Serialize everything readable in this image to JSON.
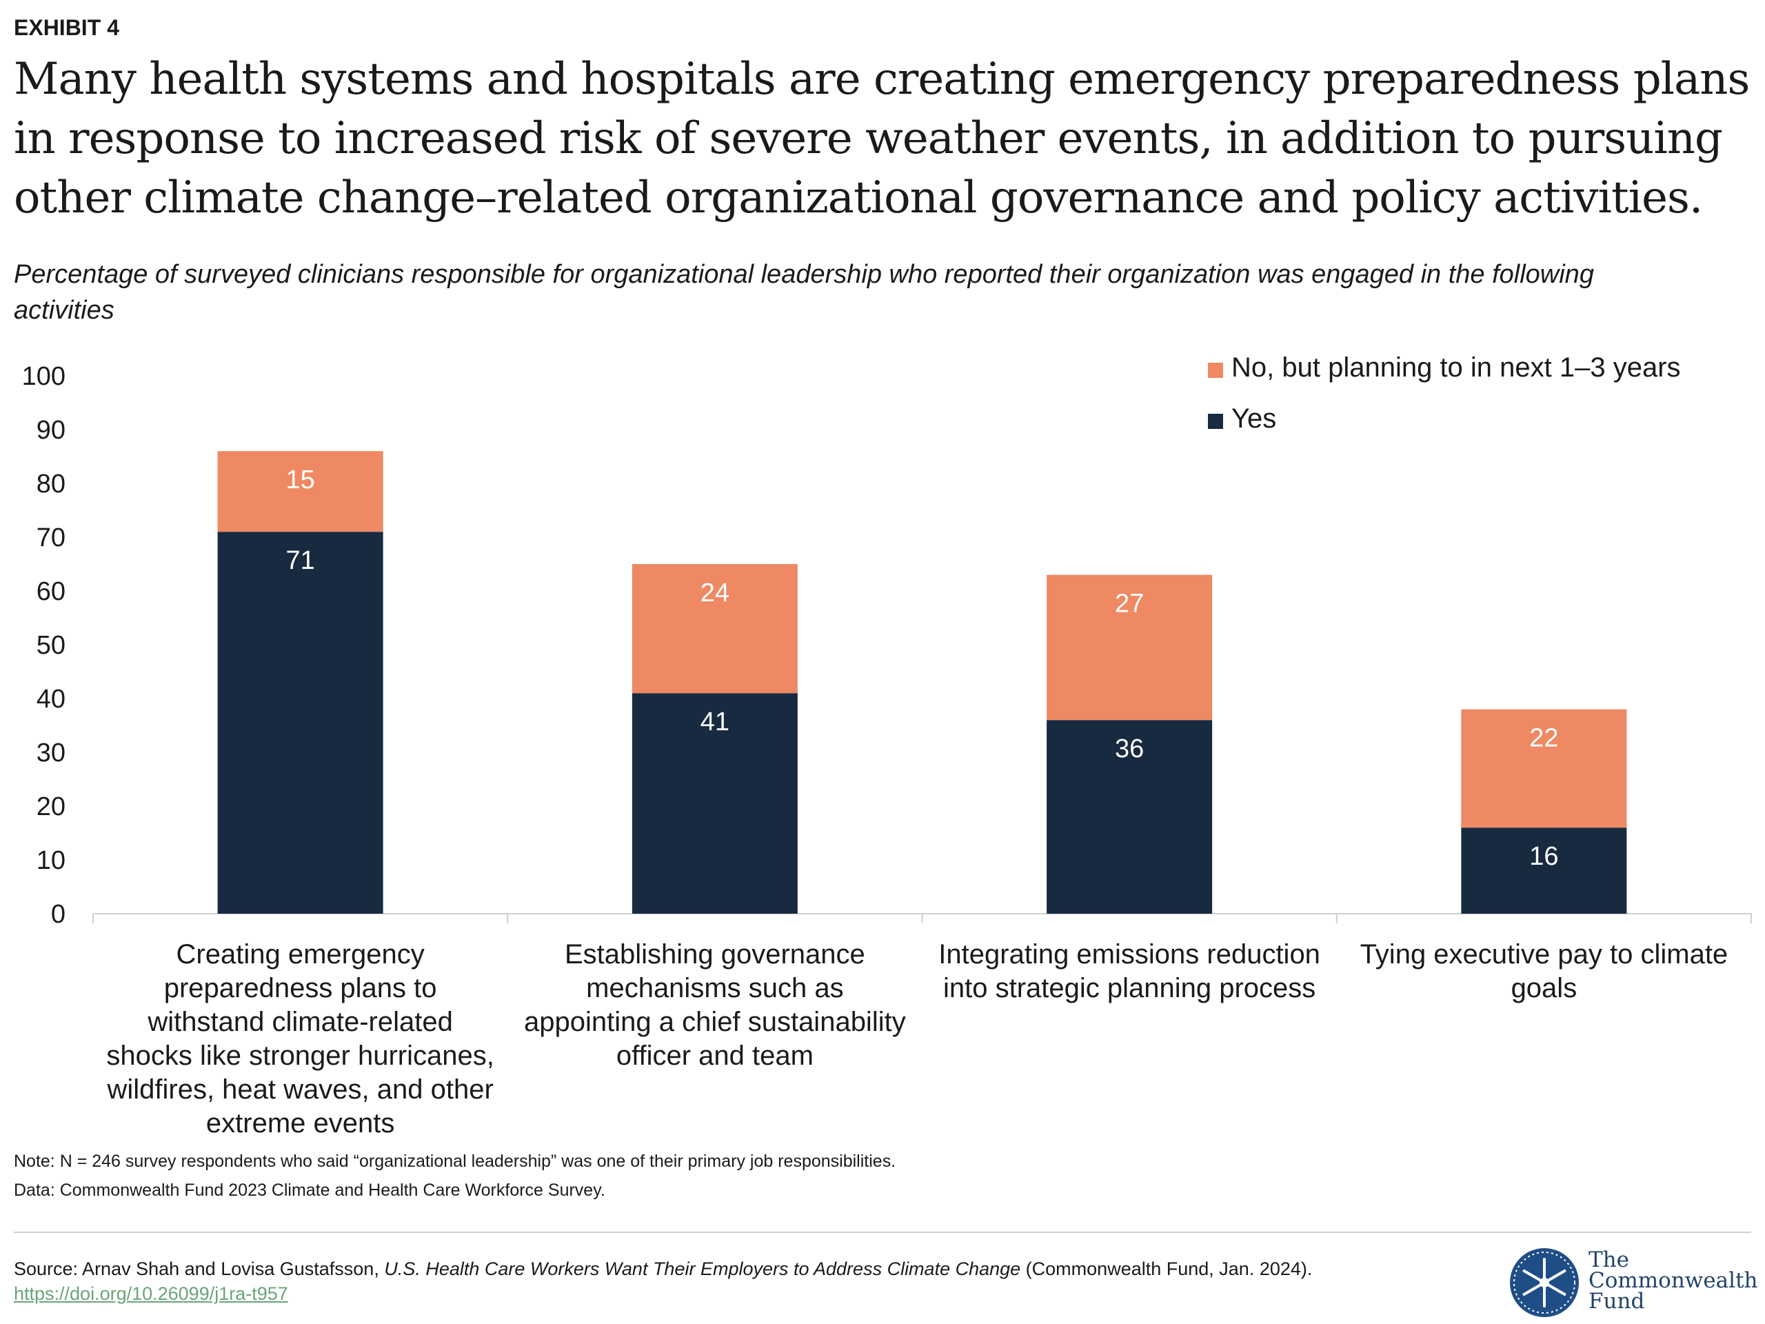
{
  "header": {
    "exhibit": "EXHIBIT 4",
    "title": "Many health systems and hospitals are creating emergency preparedness plans in response to increased risk of severe weather events, in addition to pursuing other climate change–related organizational governance and policy activities.",
    "subtitle": "Percentage of surveyed clinicians responsible for organizational leadership who reported their organization was engaged in the following activities"
  },
  "chart_data": {
    "type": "bar",
    "stacked": true,
    "categories": [
      "Creating emergency preparedness plans to withstand climate-related shocks like stronger hurricanes, wildfires, heat waves, and other extreme events",
      "Establishing governance mechanisms such as appointing a chief sustainability officer and team",
      "Integrating emissions reduction into strategic planning process",
      "Tying executive pay to climate goals"
    ],
    "category_lines": [
      [
        "Creating emergency",
        "preparedness plans to",
        "withstand climate-related",
        "shocks like stronger hurricanes,",
        "wildfires, heat waves, and other",
        "extreme events"
      ],
      [
        "Establishing governance",
        "mechanisms such as",
        "appointing a chief sustainability",
        "officer and team"
      ],
      [
        "Integrating emissions reduction",
        "into strategic planning process"
      ],
      [
        "Tying executive pay to climate",
        "goals"
      ]
    ],
    "series": [
      {
        "name": "Yes",
        "values": [
          71,
          41,
          36,
          16
        ],
        "color": "#172a40",
        "label_color": "#ffffff"
      },
      {
        "name": "No, but planning to in next 1–3 years",
        "values": [
          15,
          24,
          27,
          22
        ],
        "color": "#ee8964",
        "label_color": "#ffffff"
      }
    ],
    "ylim": [
      0,
      100
    ],
    "yticks": [
      0,
      10,
      20,
      30,
      40,
      50,
      60,
      70,
      80,
      90,
      100
    ],
    "legend_order": [
      "No, but planning to in next 1–3 years",
      "Yes"
    ],
    "legend_position": "top-right",
    "grid": false
  },
  "notes": {
    "note": "Note: N = 246 survey respondents who said “organizational leadership” was one of their primary job responsibilities.",
    "data": "Data: Commonwealth Fund 2023 Climate and Health Care Workforce Survey."
  },
  "source": {
    "prefix": "Source: Arnav Shah and Lovisa Gustafsson, ",
    "book": "U.S. Health Care Workers Want Their Employers to Address Climate Change",
    "suffix": " (Commonwealth Fund, Jan. 2024). ",
    "link": "https://doi.org/10.26099/j1ra-t957"
  },
  "logo": {
    "line1": "The",
    "line2": "Commonwealth",
    "line3": "Fund"
  },
  "colors": {
    "yes": "#172a40",
    "planning": "#ee8964",
    "link": "#6aa57a",
    "logo_blue": "#22436b"
  }
}
